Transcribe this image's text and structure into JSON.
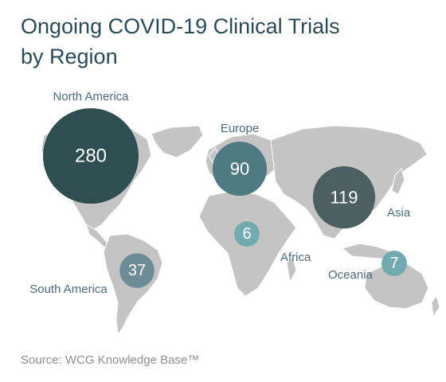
{
  "title_lines": [
    "Ongoing COVID-19 Clinical Trials",
    "by Region"
  ],
  "source": "Source: WCG Knowledge Base™",
  "regions": [
    {
      "name": "North America",
      "value": "280",
      "color": "#2f4e52"
    },
    {
      "name": "Europe",
      "value": "90",
      "color": "#4f7a82"
    },
    {
      "name": "Asia",
      "value": "119",
      "color": "#4c5f63"
    },
    {
      "name": "Africa",
      "value": "6",
      "color": "#72aab2"
    },
    {
      "name": "South America",
      "value": "37",
      "color": "#6e8c96"
    },
    {
      "name": "Oceania",
      "value": "7",
      "color": "#72aab2"
    }
  ]
}
